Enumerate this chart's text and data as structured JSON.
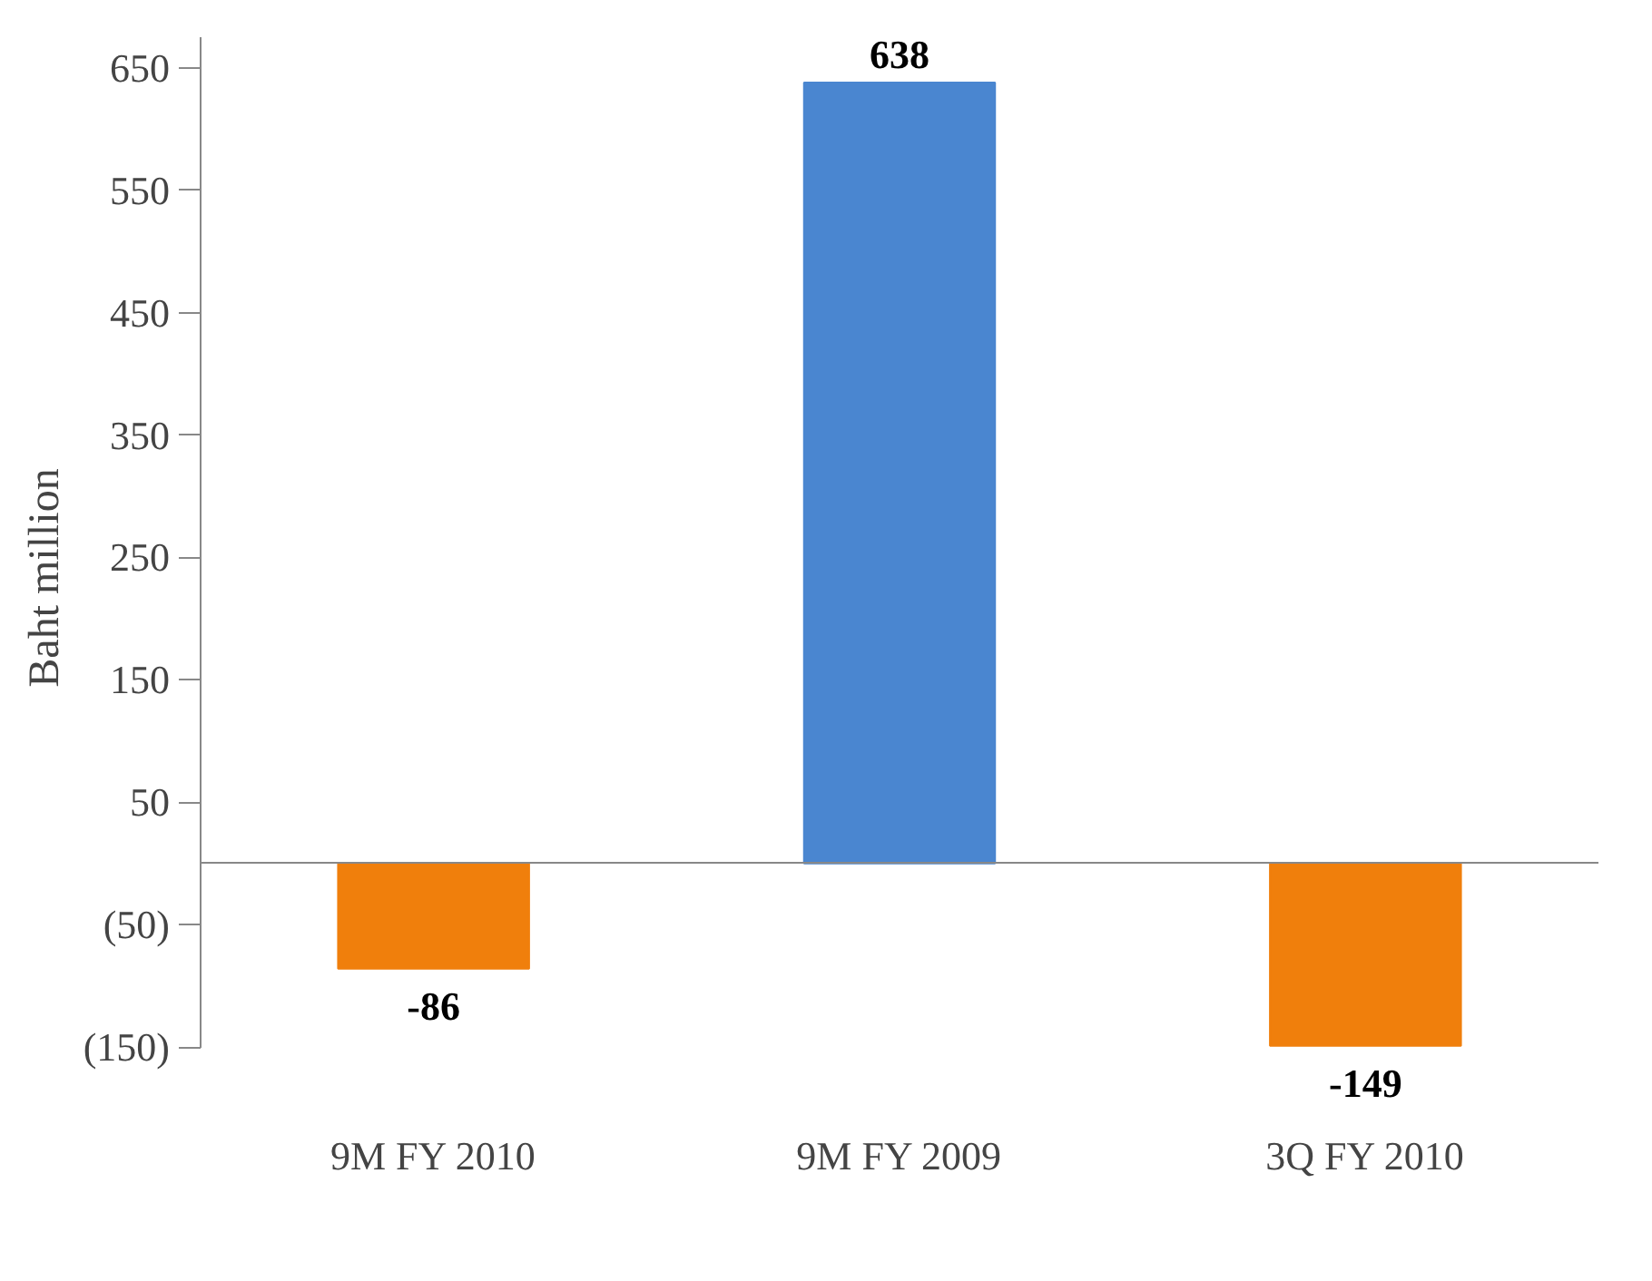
{
  "chart_data": {
    "type": "bar",
    "ylabel": "Baht  million",
    "categories": [
      "9M FY 2010",
      "9M FY 2009",
      "3Q FY 2010"
    ],
    "values": [
      -86,
      638,
      -149
    ],
    "colors": [
      "#f07f0c",
      "#4a86d0",
      "#f07f0c"
    ],
    "ylim": [
      -150,
      675
    ],
    "yticks": [
      {
        "value": -150,
        "label": "(150)"
      },
      {
        "value": -50,
        "label": "(50)"
      },
      50,
      150,
      250,
      350,
      450,
      550,
      650
    ],
    "data_labels": true,
    "grid": false
  }
}
